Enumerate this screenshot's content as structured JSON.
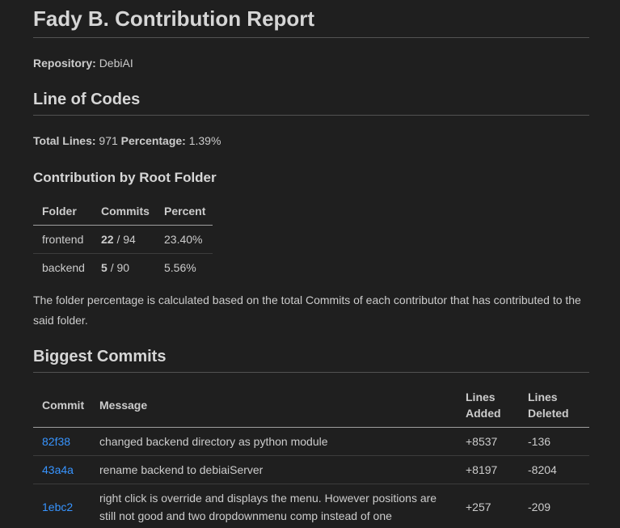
{
  "page": {
    "title": "Fady B. Contribution Report",
    "repository_label": "Repository:",
    "repository_name": "DebiAI"
  },
  "line_of_codes": {
    "heading": "Line of Codes",
    "total_lines_label": "Total Lines:",
    "total_lines": "971",
    "percentage_label": "Percentage:",
    "percentage": "1.39%"
  },
  "root_folder": {
    "heading": "Contribution by Root Folder",
    "columns": [
      "Folder",
      "Commits",
      "Percent"
    ],
    "commits_separator": "/",
    "rows": [
      {
        "folder": "frontend",
        "commits": "22",
        "commits_total": "94",
        "percent": "23.40%"
      },
      {
        "folder": "backend",
        "commits": "5",
        "commits_total": "90",
        "percent": "5.56%"
      }
    ],
    "note": "The folder percentage is calculated based on the total Commits of each contributor that has contributed to the said folder."
  },
  "biggest_commits": {
    "heading": "Biggest Commits",
    "columns": [
      "Commit",
      "Message",
      "Lines Added",
      "Lines Deleted"
    ],
    "rows": [
      {
        "hash": "82f38",
        "message": "changed backend directory as python module",
        "added": "+8537",
        "deleted": "-136"
      },
      {
        "hash": "43a4a",
        "message": "rename backend to debiaiServer",
        "added": "+8197",
        "deleted": "-8204"
      },
      {
        "hash": "1ebc2",
        "message": "right click is override and displays the menu. However positions are still not good and two dropdownmenu comp instead of one",
        "added": "+257",
        "deleted": "-209"
      }
    ]
  },
  "colors": {
    "background": "#1f1f1f",
    "text": "#cccccc",
    "link": "#3794ff",
    "heading_rule": "#525252",
    "table_header_border": "#9e9e9e",
    "table_row_border": "#3c3c3c"
  }
}
